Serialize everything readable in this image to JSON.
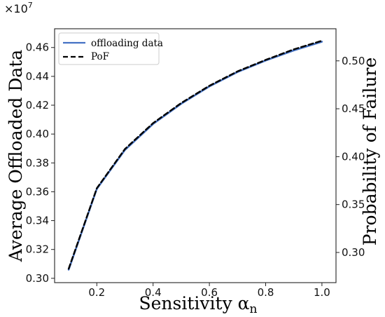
{
  "chart_data": {
    "type": "line",
    "title": "",
    "xlabel": "Sensitivity α",
    "xlabel_subscript": "n",
    "ylabel": "Average Offloaded Data",
    "y2label": "Probability of Failure",
    "y_offset_label": "×10",
    "y_offset_exponent": "7",
    "xlim": [
      0.05,
      1.05
    ],
    "ylim": [
      0.297,
      0.473
    ],
    "y2lim": [
      0.2685,
      0.5335
    ],
    "x_ticks": [
      0.2,
      0.4,
      0.6,
      0.8,
      1.0
    ],
    "x_tick_labels": [
      "0.2",
      "0.4",
      "0.6",
      "0.8",
      "1.0"
    ],
    "y_ticks": [
      0.3,
      0.32,
      0.34,
      0.36,
      0.38,
      0.4,
      0.42,
      0.44,
      0.46
    ],
    "y_tick_labels": [
      "0.30",
      "0.32",
      "0.34",
      "0.36",
      "0.38",
      "0.40",
      "0.42",
      "0.44",
      "0.46"
    ],
    "y2_ticks": [
      0.3,
      0.35,
      0.4,
      0.45,
      0.5
    ],
    "y2_tick_labels": [
      "0.30",
      "0.35",
      "0.40",
      "0.45",
      "0.50"
    ],
    "grid": false,
    "legend_position": "top-left",
    "x": [
      0.1,
      0.2,
      0.3,
      0.4,
      0.5,
      0.6,
      0.7,
      0.8,
      0.9,
      1.0
    ],
    "series": [
      {
        "name": "offloading data",
        "axis": "left",
        "color": "#4472c4",
        "dash": "solid",
        "values": [
          0.306,
          0.362,
          0.389,
          0.407,
          0.421,
          0.433,
          0.443,
          0.451,
          0.458,
          0.464
        ]
      },
      {
        "name": "PoF",
        "axis": "right",
        "color": "#000000",
        "dash": "dashed",
        "values": [
          0.283,
          0.367,
          0.408,
          0.435,
          0.456,
          0.474,
          0.489,
          0.501,
          0.512,
          0.521
        ]
      }
    ]
  }
}
